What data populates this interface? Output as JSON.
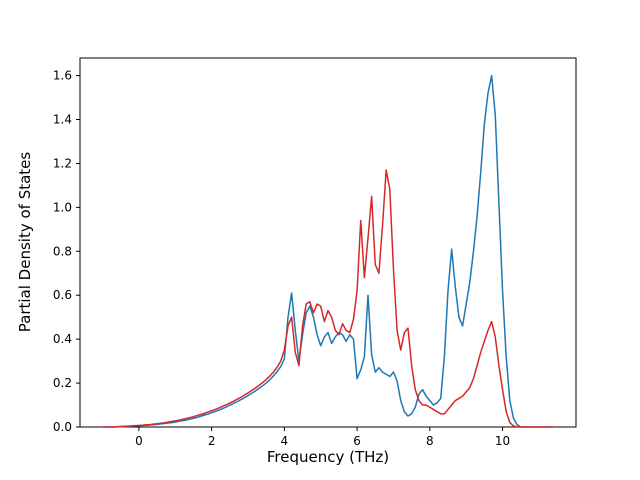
{
  "chart_data": {
    "type": "line",
    "title": "",
    "xlabel": "Frequency (THz)",
    "ylabel": "Partial Density of States",
    "xlim": [
      -1.62,
      12.02
    ],
    "ylim": [
      0,
      1.68
    ],
    "xticks": [
      0,
      2,
      4,
      6,
      8,
      10
    ],
    "yticks": [
      0,
      0.2,
      0.4,
      0.6,
      0.8,
      1.0,
      1.2,
      1.4,
      1.6
    ],
    "grid": false,
    "legend": null,
    "x": [
      -1.0,
      -0.9,
      -0.8,
      -0.7,
      -0.6,
      -0.5,
      -0.4,
      -0.3,
      -0.2,
      -0.1,
      0.0,
      0.1,
      0.2,
      0.3,
      0.4,
      0.5,
      0.6,
      0.7,
      0.8,
      0.9,
      1.0,
      1.1,
      1.2,
      1.3,
      1.4,
      1.5,
      1.6,
      1.7,
      1.8,
      1.9,
      2.0,
      2.1,
      2.2,
      2.3,
      2.4,
      2.5,
      2.6,
      2.7,
      2.8,
      2.9,
      3.0,
      3.1,
      3.2,
      3.3,
      3.4,
      3.5,
      3.6,
      3.7,
      3.8,
      3.9,
      4.0,
      4.1,
      4.2,
      4.3,
      4.4,
      4.5,
      4.6,
      4.7,
      4.8,
      4.9,
      5.0,
      5.1,
      5.2,
      5.3,
      5.4,
      5.5,
      5.6,
      5.7,
      5.8,
      5.9,
      6.0,
      6.1,
      6.2,
      6.3,
      6.4,
      6.5,
      6.6,
      6.7,
      6.8,
      6.9,
      7.0,
      7.1,
      7.2,
      7.3,
      7.4,
      7.5,
      7.6,
      7.7,
      7.8,
      7.9,
      8.0,
      8.1,
      8.2,
      8.3,
      8.4,
      8.5,
      8.6,
      8.7,
      8.8,
      8.9,
      9.0,
      9.1,
      9.2,
      9.3,
      9.4,
      9.5,
      9.6,
      9.7,
      9.8,
      9.9,
      10.0,
      10.1,
      10.2,
      10.3,
      10.4,
      10.5,
      10.6,
      10.7,
      10.8,
      10.9,
      11.0,
      11.1,
      11.2,
      11.3,
      11.4
    ],
    "series": [
      {
        "name": "blue",
        "color": "#1f77b4",
        "values": [
          0,
          0,
          0,
          0,
          0.001,
          0.001,
          0.002,
          0.003,
          0.004,
          0.005,
          0.006,
          0.007,
          0.008,
          0.009,
          0.011,
          0.012,
          0.014,
          0.016,
          0.018,
          0.02,
          0.023,
          0.026,
          0.029,
          0.032,
          0.036,
          0.04,
          0.044,
          0.049,
          0.054,
          0.059,
          0.065,
          0.071,
          0.077,
          0.084,
          0.091,
          0.099,
          0.107,
          0.115,
          0.124,
          0.133,
          0.143,
          0.153,
          0.164,
          0.175,
          0.187,
          0.2,
          0.215,
          0.232,
          0.252,
          0.275,
          0.31,
          0.5,
          0.61,
          0.44,
          0.3,
          0.42,
          0.52,
          0.55,
          0.5,
          0.42,
          0.37,
          0.41,
          0.43,
          0.38,
          0.41,
          0.43,
          0.42,
          0.39,
          0.42,
          0.4,
          0.22,
          0.26,
          0.32,
          0.6,
          0.33,
          0.25,
          0.27,
          0.25,
          0.24,
          0.23,
          0.25,
          0.21,
          0.12,
          0.07,
          0.05,
          0.06,
          0.09,
          0.15,
          0.17,
          0.14,
          0.12,
          0.1,
          0.11,
          0.13,
          0.32,
          0.62,
          0.81,
          0.64,
          0.5,
          0.46,
          0.56,
          0.66,
          0.8,
          0.96,
          1.16,
          1.38,
          1.52,
          1.6,
          1.42,
          1.02,
          0.62,
          0.32,
          0.12,
          0.04,
          0.01,
          0,
          0,
          0,
          0,
          0,
          0,
          0,
          0,
          0,
          0
        ]
      },
      {
        "name": "red",
        "color": "#d62728",
        "values": [
          0,
          0,
          0,
          0,
          0.001,
          0.002,
          0.003,
          0.004,
          0.005,
          0.006,
          0.007,
          0.008,
          0.01,
          0.011,
          0.013,
          0.015,
          0.017,
          0.019,
          0.022,
          0.025,
          0.028,
          0.031,
          0.035,
          0.039,
          0.043,
          0.047,
          0.052,
          0.057,
          0.062,
          0.068,
          0.074,
          0.08,
          0.087,
          0.094,
          0.101,
          0.109,
          0.117,
          0.126,
          0.135,
          0.145,
          0.155,
          0.166,
          0.177,
          0.189,
          0.202,
          0.216,
          0.232,
          0.25,
          0.272,
          0.3,
          0.35,
          0.46,
          0.5,
          0.34,
          0.28,
          0.46,
          0.56,
          0.57,
          0.52,
          0.56,
          0.55,
          0.48,
          0.53,
          0.5,
          0.44,
          0.42,
          0.47,
          0.44,
          0.43,
          0.49,
          0.62,
          0.94,
          0.68,
          0.86,
          1.05,
          0.74,
          0.7,
          0.92,
          1.17,
          1.08,
          0.72,
          0.44,
          0.35,
          0.43,
          0.45,
          0.28,
          0.17,
          0.12,
          0.1,
          0.1,
          0.09,
          0.08,
          0.07,
          0.06,
          0.06,
          0.08,
          0.1,
          0.12,
          0.13,
          0.14,
          0.16,
          0.18,
          0.22,
          0.28,
          0.34,
          0.39,
          0.44,
          0.48,
          0.41,
          0.28,
          0.17,
          0.07,
          0.02,
          0.005,
          0,
          0,
          0,
          0,
          0,
          0,
          0,
          0,
          0,
          0,
          0
        ]
      }
    ]
  }
}
